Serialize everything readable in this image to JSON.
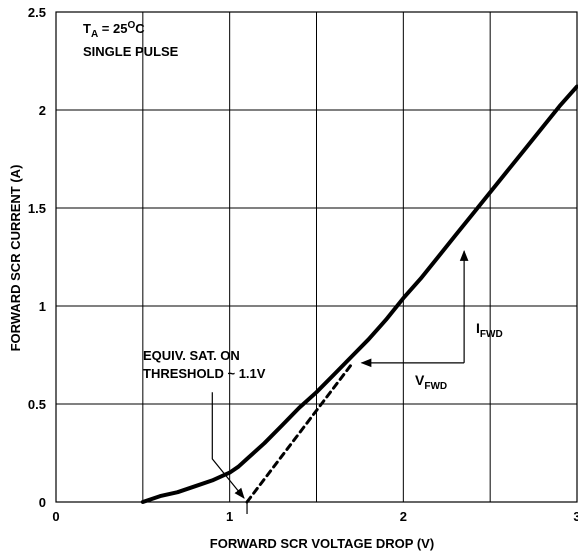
{
  "chart_data": {
    "type": "line",
    "xlabel": "FORWARD SCR VOLTAGE DROP (V)",
    "ylabel": "FORWARD SCR CURRENT (A)",
    "xlim": [
      0,
      3
    ],
    "ylim": [
      0,
      2.5
    ],
    "xticks": [
      0,
      1,
      2,
      3
    ],
    "xtick_labels": [
      "0",
      "1",
      "2",
      "3"
    ],
    "yticks": [
      0,
      0.5,
      1,
      1.5,
      2,
      2.5
    ],
    "ytick_labels": [
      "0",
      "0.5",
      "1",
      "1.5",
      "2",
      "2.5"
    ],
    "grid": true,
    "series": [
      {
        "style": "solid",
        "color": "#000000",
        "x": [
          0.5,
          0.6,
          0.7,
          0.8,
          0.9,
          1.0,
          1.05,
          1.1,
          1.2,
          1.3,
          1.4,
          1.5,
          1.6,
          1.7,
          1.8,
          1.9,
          2.0,
          2.1,
          2.2,
          2.3,
          2.4,
          2.5,
          2.6,
          2.7,
          2.8,
          2.9,
          3.0
        ],
        "y": [
          0.0,
          0.03,
          0.05,
          0.08,
          0.11,
          0.15,
          0.18,
          0.22,
          0.3,
          0.39,
          0.48,
          0.56,
          0.65,
          0.74,
          0.83,
          0.93,
          1.04,
          1.14,
          1.25,
          1.36,
          1.47,
          1.58,
          1.69,
          1.8,
          1.91,
          2.02,
          2.12
        ]
      },
      {
        "style": "dashed",
        "color": "#000000",
        "x": [
          1.1,
          1.7
        ],
        "y": [
          0.0,
          0.7
        ]
      }
    ],
    "annotations": {
      "condition_line1_prefix": "T",
      "condition_line1_sub": "A",
      "condition_line1_mid": " = 25",
      "condition_line1_sup": "O",
      "condition_line1_suffix": "C",
      "condition_line2": "SINGLE PULSE",
      "threshold_line1": "EQUIV. SAT. ON",
      "threshold_line2": "THRESHOLD ~ 1.1V",
      "threshold_x": 1.1,
      "vfwd_main": "V",
      "vfwd_sub": "FWD",
      "ifwd_main": "I",
      "ifwd_sub": "FWD"
    }
  }
}
